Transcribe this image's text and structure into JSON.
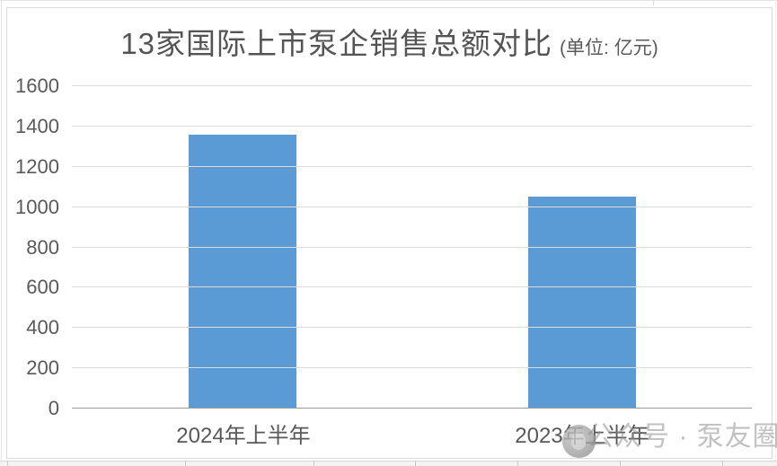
{
  "chart_data": {
    "type": "bar",
    "title_main": "13家国际上市泵企销售总额对比",
    "title_unit": "(单位: 亿元)",
    "title": "13家国际上市泵企销售总额对比 (单位: 亿元)",
    "categories": [
      "2024年上半年",
      "2023年上半年"
    ],
    "values": [
      1360,
      1050
    ],
    "bar_color": "#5B9BD5",
    "ylim": [
      0,
      1600
    ],
    "yticks": [
      0,
      200,
      400,
      600,
      800,
      1000,
      1200,
      1400,
      1600
    ],
    "xlabel": "",
    "ylabel": "",
    "grid": true,
    "legend": false,
    "gridline_color": "#dcdcdc",
    "axis_line_color": "#9b9b9b",
    "text_color": "#595959"
  },
  "watermark": {
    "text": "公众号 · 泵友圈",
    "logo": "pump-circle-logo",
    "color": "#8f8f8f"
  }
}
